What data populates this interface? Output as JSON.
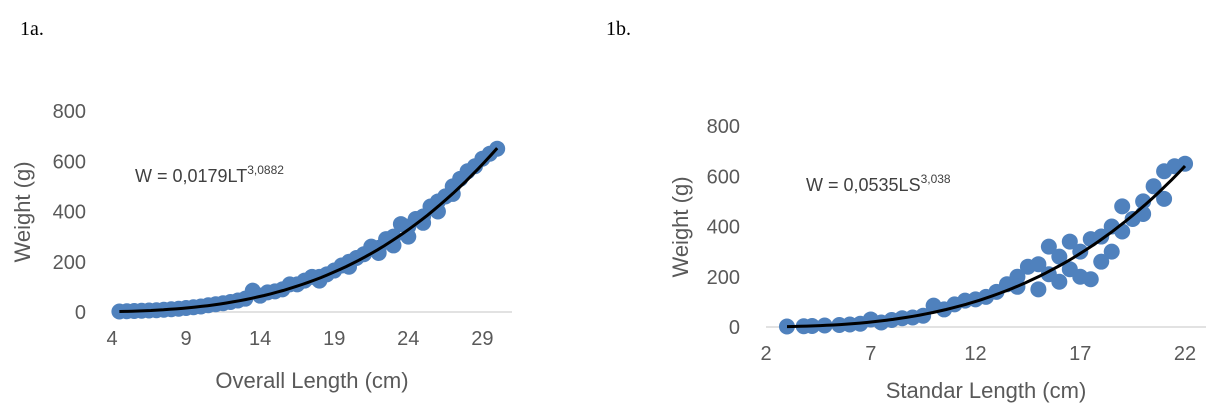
{
  "panels": [
    {
      "label": "1a."
    },
    {
      "label": "1b."
    }
  ],
  "chart_data": [
    {
      "type": "scatter",
      "title": "",
      "xlabel": "Overall Length (cm)",
      "ylabel": "Weight (g)",
      "xlim": [
        4,
        31
      ],
      "ylim": [
        0,
        800
      ],
      "x_ticks": [
        4,
        9,
        14,
        19,
        24,
        29
      ],
      "y_ticks": [
        0,
        200,
        400,
        600,
        800
      ],
      "grid": false,
      "marker_color": "#4F81BD",
      "trendline_color": "#000000",
      "equation": {
        "base": "W = 0,0179LT",
        "exponent": "3,0882"
      },
      "trendline": {
        "a": 0.0179,
        "b": 3.0882
      },
      "points": [
        {
          "x": 4.5,
          "y": 2
        },
        {
          "x": 5.0,
          "y": 3
        },
        {
          "x": 5.5,
          "y": 4
        },
        {
          "x": 6.0,
          "y": 5
        },
        {
          "x": 6.5,
          "y": 6
        },
        {
          "x": 7.0,
          "y": 7
        },
        {
          "x": 7.5,
          "y": 9
        },
        {
          "x": 8.0,
          "y": 11
        },
        {
          "x": 8.5,
          "y": 13
        },
        {
          "x": 9.0,
          "y": 16
        },
        {
          "x": 9.5,
          "y": 19
        },
        {
          "x": 10.0,
          "y": 22
        },
        {
          "x": 10.5,
          "y": 27
        },
        {
          "x": 11.0,
          "y": 31
        },
        {
          "x": 11.5,
          "y": 35
        },
        {
          "x": 12.0,
          "y": 40
        },
        {
          "x": 12.5,
          "y": 46
        },
        {
          "x": 13.0,
          "y": 53
        },
        {
          "x": 13.5,
          "y": 85
        },
        {
          "x": 14.0,
          "y": 65
        },
        {
          "x": 14.5,
          "y": 78
        },
        {
          "x": 15.0,
          "y": 82
        },
        {
          "x": 15.5,
          "y": 90
        },
        {
          "x": 16.0,
          "y": 110
        },
        {
          "x": 16.5,
          "y": 110
        },
        {
          "x": 17.0,
          "y": 125
        },
        {
          "x": 17.5,
          "y": 140
        },
        {
          "x": 18.0,
          "y": 140
        },
        {
          "x": 18.5,
          "y": 150
        },
        {
          "x": 19.0,
          "y": 165
        },
        {
          "x": 19.5,
          "y": 185
        },
        {
          "x": 20.0,
          "y": 200
        },
        {
          "x": 20.5,
          "y": 215
        },
        {
          "x": 21.0,
          "y": 230
        },
        {
          "x": 21.5,
          "y": 260
        },
        {
          "x": 22.0,
          "y": 255
        },
        {
          "x": 22.5,
          "y": 290
        },
        {
          "x": 23.0,
          "y": 300
        },
        {
          "x": 23.5,
          "y": 350
        },
        {
          "x": 24.0,
          "y": 340
        },
        {
          "x": 24.5,
          "y": 370
        },
        {
          "x": 25.0,
          "y": 355
        },
        {
          "x": 25.5,
          "y": 420
        },
        {
          "x": 26.0,
          "y": 440
        },
        {
          "x": 26.5,
          "y": 460
        },
        {
          "x": 27.0,
          "y": 500
        },
        {
          "x": 27.5,
          "y": 530
        },
        {
          "x": 28.0,
          "y": 560
        },
        {
          "x": 28.5,
          "y": 580
        },
        {
          "x": 29.0,
          "y": 610
        },
        {
          "x": 29.5,
          "y": 630
        },
        {
          "x": 30.0,
          "y": 650
        },
        {
          "x": 22.0,
          "y": 235
        },
        {
          "x": 23.0,
          "y": 265
        },
        {
          "x": 24.0,
          "y": 300
        },
        {
          "x": 25.0,
          "y": 380
        },
        {
          "x": 26.0,
          "y": 400
        },
        {
          "x": 27.0,
          "y": 470
        },
        {
          "x": 20.0,
          "y": 180
        },
        {
          "x": 18.0,
          "y": 125
        }
      ]
    },
    {
      "type": "scatter",
      "title": "",
      "xlabel": "Standar Length (cm)",
      "ylabel": "Weight (g)",
      "xlim": [
        2,
        23
      ],
      "ylim": [
        0,
        800
      ],
      "x_ticks": [
        2,
        7,
        12,
        17,
        22
      ],
      "y_ticks": [
        0,
        200,
        400,
        600,
        800
      ],
      "grid": false,
      "marker_color": "#4F81BD",
      "trendline_color": "#000000",
      "equation": {
        "base": "W = 0,0535LS",
        "exponent": "3,038"
      },
      "trendline": {
        "a": 0.0535,
        "b": 3.038
      },
      "points": [
        {
          "x": 3.0,
          "y": 2
        },
        {
          "x": 3.8,
          "y": 3
        },
        {
          "x": 4.2,
          "y": 4
        },
        {
          "x": 4.8,
          "y": 6
        },
        {
          "x": 5.5,
          "y": 8
        },
        {
          "x": 6.0,
          "y": 10
        },
        {
          "x": 6.5,
          "y": 13
        },
        {
          "x": 7.0,
          "y": 30
        },
        {
          "x": 7.5,
          "y": 18
        },
        {
          "x": 8.0,
          "y": 28
        },
        {
          "x": 8.5,
          "y": 35
        },
        {
          "x": 9.0,
          "y": 38
        },
        {
          "x": 9.5,
          "y": 45
        },
        {
          "x": 10.0,
          "y": 85
        },
        {
          "x": 10.5,
          "y": 70
        },
        {
          "x": 11.0,
          "y": 90
        },
        {
          "x": 11.5,
          "y": 105
        },
        {
          "x": 12.0,
          "y": 110
        },
        {
          "x": 12.5,
          "y": 120
        },
        {
          "x": 13.0,
          "y": 140
        },
        {
          "x": 13.5,
          "y": 170
        },
        {
          "x": 14.0,
          "y": 200
        },
        {
          "x": 14.5,
          "y": 240
        },
        {
          "x": 15.0,
          "y": 250
        },
        {
          "x": 15.5,
          "y": 320
        },
        {
          "x": 16.0,
          "y": 280
        },
        {
          "x": 16.5,
          "y": 230
        },
        {
          "x": 17.0,
          "y": 300
        },
        {
          "x": 17.5,
          "y": 350
        },
        {
          "x": 18.0,
          "y": 360
        },
        {
          "x": 18.5,
          "y": 400
        },
        {
          "x": 19.0,
          "y": 480
        },
        {
          "x": 19.5,
          "y": 430
        },
        {
          "x": 20.0,
          "y": 500
        },
        {
          "x": 20.5,
          "y": 560
        },
        {
          "x": 21.0,
          "y": 620
        },
        {
          "x": 21.5,
          "y": 640
        },
        {
          "x": 22.0,
          "y": 650
        },
        {
          "x": 15.0,
          "y": 150
        },
        {
          "x": 16.0,
          "y": 180
        },
        {
          "x": 17.0,
          "y": 200
        },
        {
          "x": 18.0,
          "y": 260
        },
        {
          "x": 16.5,
          "y": 340
        },
        {
          "x": 17.5,
          "y": 190
        },
        {
          "x": 15.5,
          "y": 210
        },
        {
          "x": 19.0,
          "y": 380
        },
        {
          "x": 20.0,
          "y": 450
        },
        {
          "x": 21.0,
          "y": 510
        },
        {
          "x": 14.0,
          "y": 160
        },
        {
          "x": 18.5,
          "y": 300
        }
      ]
    }
  ]
}
